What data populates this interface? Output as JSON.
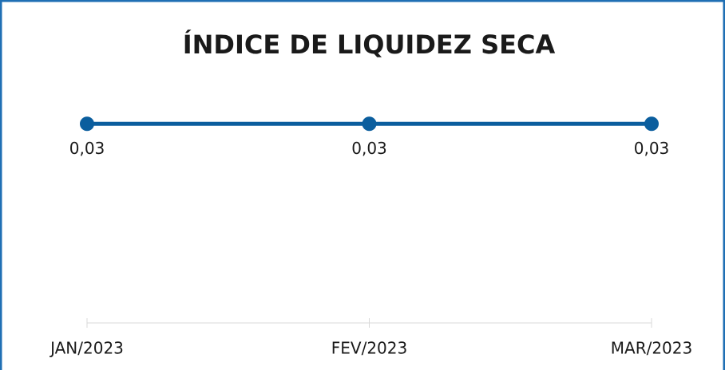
{
  "chart_data": {
    "type": "line",
    "title": "ÍNDICE DE LIQUIDEZ SECA",
    "categories": [
      "JAN/2023",
      "FEV/2023",
      "MAR/2023"
    ],
    "series": [
      {
        "name": null,
        "color": "#0b5e9e",
        "values": [
          0.03,
          0.03,
          0.03
        ],
        "value_labels": [
          "0,03",
          "0,03",
          "0,03"
        ]
      }
    ],
    "ylim": [
      0,
      0.04
    ]
  }
}
